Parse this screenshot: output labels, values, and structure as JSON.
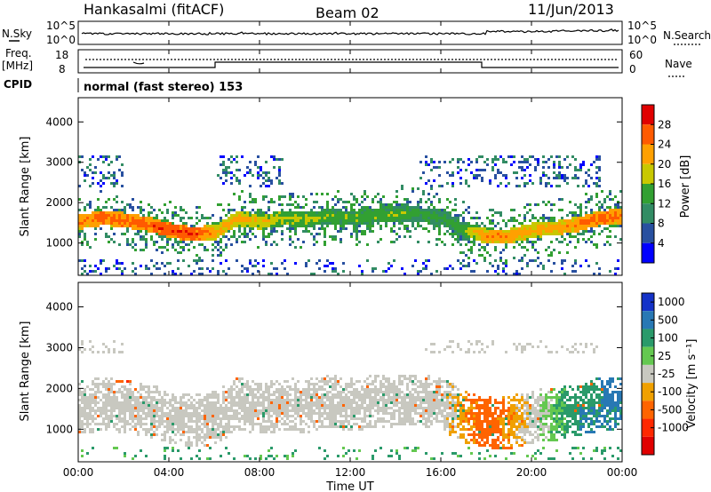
{
  "header": {
    "station": "Hankasalmi (fitACF)",
    "beam": "Beam 02",
    "date": "11/Jun/2013"
  },
  "noise_panel": {
    "left_label": "N.Sky",
    "left_top_tick": "10^5",
    "left_bottom_tick": "10^0",
    "right_top_tick": "10^5",
    "right_bottom_tick": "10^0",
    "right_label": "N.Search"
  },
  "freq_panel": {
    "left_label_line1": "Freq.",
    "left_label_line2": "[MHz]",
    "left_top_tick": "18",
    "left_bottom_tick": "8",
    "right_top_tick": "60",
    "right_bottom_tick": "0",
    "right_label": "Nave"
  },
  "cpid": {
    "label": "CPID",
    "text": "normal (fast stereo) 153"
  },
  "x_axis": {
    "title": "Time UT",
    "ticks": [
      "00:00",
      "04:00",
      "08:00",
      "12:00",
      "16:00",
      "20:00",
      "00:00"
    ]
  },
  "power_panel": {
    "ylabel": "Slant Range [km]",
    "yticks": [
      "4000",
      "3000",
      "2000",
      "1000"
    ],
    "colorbar_label": "Power [dB]",
    "colorbar_ticks": [
      "28",
      "24",
      "20",
      "16",
      "12",
      "8",
      "4"
    ],
    "colorbar_colors": [
      "#e00000",
      "#ff5a00",
      "#ffa000",
      "#c8c800",
      "#32a032",
      "#328c64",
      "#2850a0",
      "#0000ff"
    ]
  },
  "velocity_panel": {
    "ylabel": "Slant Range [km]",
    "yticks": [
      "4000",
      "3000",
      "2000",
      "1000"
    ],
    "colorbar_label": "Velocity [m s⁻¹]",
    "colorbar_ticks": [
      "1000",
      "500",
      "100",
      "25",
      "-25",
      "-100",
      "-500",
      "-1000"
    ],
    "colorbar_colors": [
      "#1432c8",
      "#2878b4",
      "#2a9a6a",
      "#64c850",
      "#c8c8c0",
      "#f0a000",
      "#ff6400",
      "#ff2800",
      "#e00000"
    ]
  },
  "chart_data": [
    {
      "type": "heatmap",
      "title": "Power",
      "xlabel": "Time UT",
      "ylabel": "Slant Range [km]",
      "xlim": [
        "00:00",
        "24:00"
      ],
      "ylim": [
        200,
        4600
      ],
      "colorbar": {
        "label": "Power [dB]",
        "range": [
          0,
          32
        ]
      },
      "echo_band": {
        "x_hours": [
          0,
          1,
          2,
          3,
          4,
          5,
          6,
          7,
          8,
          9,
          10,
          11,
          12,
          13,
          14,
          15,
          16,
          17,
          18,
          19,
          20,
          21,
          22,
          23,
          24
        ],
        "center_km": [
          1550,
          1650,
          1600,
          1500,
          1350,
          1250,
          1300,
          1650,
          1550,
          1650,
          1600,
          1700,
          1650,
          1700,
          1750,
          1750,
          1650,
          1350,
          1200,
          1200,
          1350,
          1400,
          1500,
          1650,
          1700
        ],
        "peak_power_db": [
          24,
          26,
          26,
          26,
          28,
          28,
          22,
          22,
          20,
          18,
          18,
          16,
          16,
          16,
          16,
          14,
          14,
          16,
          24,
          24,
          22,
          22,
          24,
          26,
          26
        ]
      }
    },
    {
      "type": "heatmap",
      "title": "Velocity",
      "xlabel": "Time UT",
      "ylabel": "Slant Range [km]",
      "xlim": [
        "00:00",
        "24:00"
      ],
      "ylim": [
        200,
        4600
      ],
      "colorbar": {
        "label": "Velocity [m s⁻¹]",
        "range": [
          -1000,
          1000
        ]
      },
      "dominant_velocity_band": {
        "x_hours": [
          0,
          2,
          4,
          6,
          8,
          10,
          12,
          14,
          16,
          18,
          20,
          22,
          24
        ],
        "velocity_ms": [
          0,
          0,
          0,
          0,
          0,
          0,
          0,
          0,
          0,
          -100,
          0,
          100,
          500
        ]
      }
    }
  ]
}
